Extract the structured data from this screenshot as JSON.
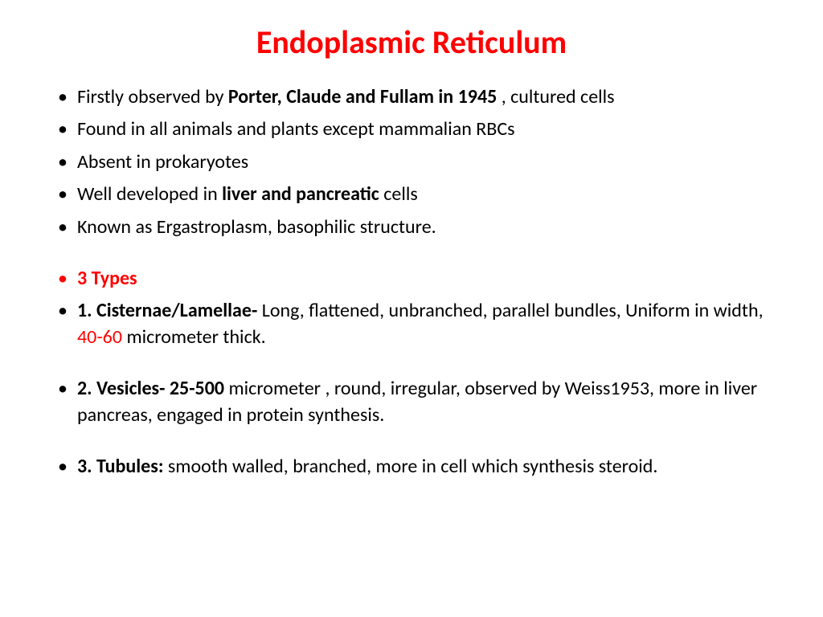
{
  "title": {
    "text": "Endoplasmic Reticulum",
    "color": "#ff0000",
    "fontsize": 40
  },
  "body": {
    "color": "#000000",
    "fontsize": 24,
    "bullet_color": "#000000"
  },
  "bullets": {
    "b1_pre": "Firstly  observed by ",
    "b1_bold": "Porter, Claude and Fullam in 1945 ",
    "b1_post": ", cultured cells",
    "b2": "Found in all animals and plants except mammalian RBCs",
    "b3": "Absent in prokaryotes",
    "b4_pre": "Well developed in ",
    "b4_bold": "liver and pancreatic ",
    "b4_post": "cells",
    "b5": "Known as Ergastroplasm, basophilic structure.",
    "b6": "3 Types",
    "b7_bold": "1. Cisternae/Lamellae- ",
    "b7_mid": "Long, flattened, unbranched, parallel bundles, Uniform in width, ",
    "b7_red": "40-60",
    "b7_post": " micrometer thick.",
    "b8_bold": "2. Vesicles- 25-500 ",
    "b8_post": "micrometer , round, irregular, observed by Weiss1953, more in liver pancreas, engaged in protein synthesis.",
    "b9_bold": "3. Tubules: ",
    "b9_post": "smooth walled, branched, more in cell  which synthesis steroid."
  },
  "colors": {
    "red": "#ff0000",
    "black": "#000000",
    "background": "#ffffff"
  }
}
